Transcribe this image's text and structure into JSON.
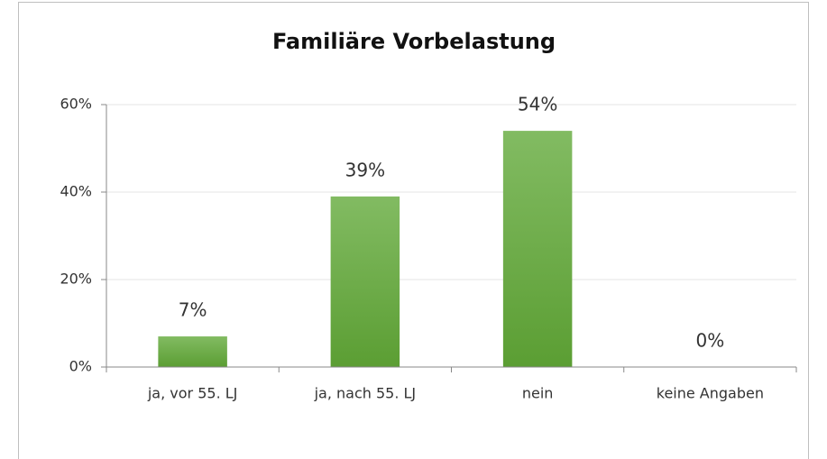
{
  "chart_data": {
    "type": "bar",
    "title": "Familiäre Vorbelastung",
    "categories": [
      "ja, vor 55. LJ",
      "ja, nach 55. LJ",
      "nein",
      "keine Angaben"
    ],
    "values": [
      7,
      39,
      54,
      0
    ],
    "value_labels": [
      "7%",
      "39%",
      "54%",
      "0%"
    ],
    "color": "#6aad45",
    "ylim": [
      0,
      60
    ],
    "yticks": [
      {
        "value": 0,
        "label": "0%"
      },
      {
        "value": 20,
        "label": "20%"
      },
      {
        "value": 40,
        "label": "40%"
      },
      {
        "value": 60,
        "label": "60%"
      }
    ],
    "grid": true
  }
}
